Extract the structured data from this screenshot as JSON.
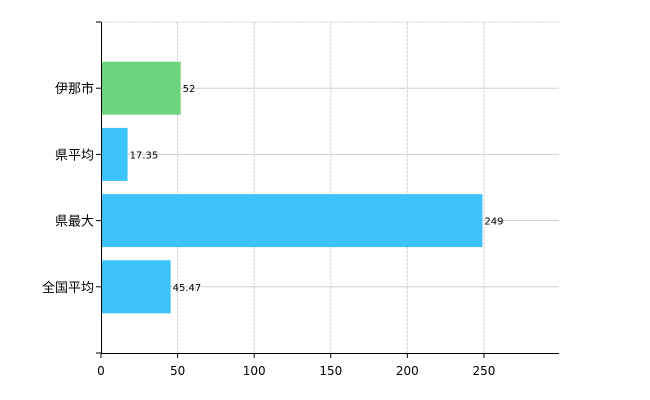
{
  "chart_data": {
    "type": "bar",
    "orientation": "horizontal",
    "categories": [
      "伊那市",
      "県平均",
      "県最大",
      "全国平均"
    ],
    "values": [
      52,
      17.35,
      249,
      45.47
    ],
    "data_labels": [
      "52",
      "17.35",
      "249",
      "45.47"
    ],
    "bar_colors": [
      "#6dd47e",
      "#3cc4fa",
      "#3cc4fa",
      "#3cc4fa"
    ],
    "x_ticks": [
      0,
      50,
      100,
      150,
      200,
      250
    ],
    "xlim": [
      0,
      299
    ],
    "title": "",
    "xlabel": "",
    "ylabel": "",
    "grid": true,
    "legend": "none"
  }
}
